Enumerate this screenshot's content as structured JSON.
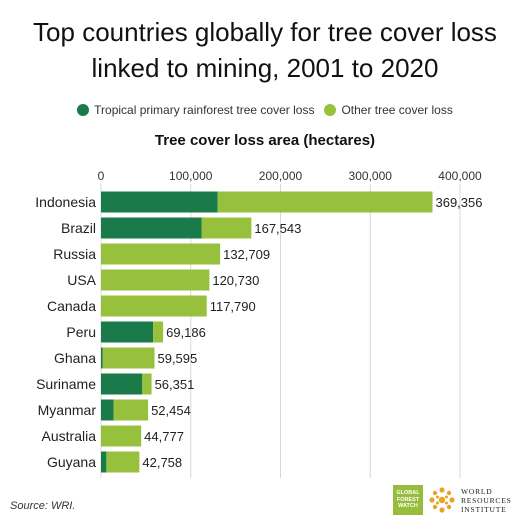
{
  "title_line1": "Top countries globally for tree cover loss",
  "title_line2": "linked to mining, 2001 to 2020",
  "legend": {
    "primary": "Tropical primary rainforest tree cover loss",
    "other": "Other tree cover loss"
  },
  "colors": {
    "primary": "#1a7a4a",
    "other": "#97c13c"
  },
  "source": "Source: WRI.",
  "logos": {
    "gfw_lines": [
      "GLOBAL",
      "FOREST",
      "WATCH"
    ],
    "wri_lines": [
      "WORLD",
      "RESOURCES",
      "INSTITUTE"
    ]
  },
  "chart_data": {
    "type": "bar",
    "orientation": "horizontal",
    "stacked": true,
    "title": "Tree cover loss area (hectares)",
    "xlim": [
      0,
      400000
    ],
    "ticks": [
      0,
      100000,
      200000,
      300000,
      400000
    ],
    "tick_labels": [
      "0",
      "100,000",
      "200,000",
      "300,000",
      "400,000"
    ],
    "grid": true,
    "legend_position": "top",
    "categories": [
      "Indonesia",
      "Brazil",
      "Russia",
      "USA",
      "Canada",
      "Peru",
      "Ghana",
      "Suriname",
      "Myanmar",
      "Australia",
      "Guyana"
    ],
    "series": [
      {
        "name": "Tropical primary rainforest tree cover loss",
        "values": [
          130000,
          112000,
          0,
          0,
          0,
          58000,
          2000,
          46000,
          14000,
          0,
          6000
        ]
      },
      {
        "name": "Other tree cover loss",
        "values": [
          239356,
          55543,
          132709,
          120730,
          117790,
          11186,
          57595,
          10351,
          38454,
          44777,
          36758
        ]
      }
    ],
    "totals": [
      369356,
      167543,
      132709,
      120730,
      117790,
      69186,
      59595,
      56351,
      52454,
      44777,
      42758
    ],
    "total_labels": [
      "369,356",
      "167,543",
      "132,709",
      "120,730",
      "117,790",
      "69,186",
      "59,595",
      "56,351",
      "52,454",
      "44,777",
      "42,758"
    ]
  }
}
